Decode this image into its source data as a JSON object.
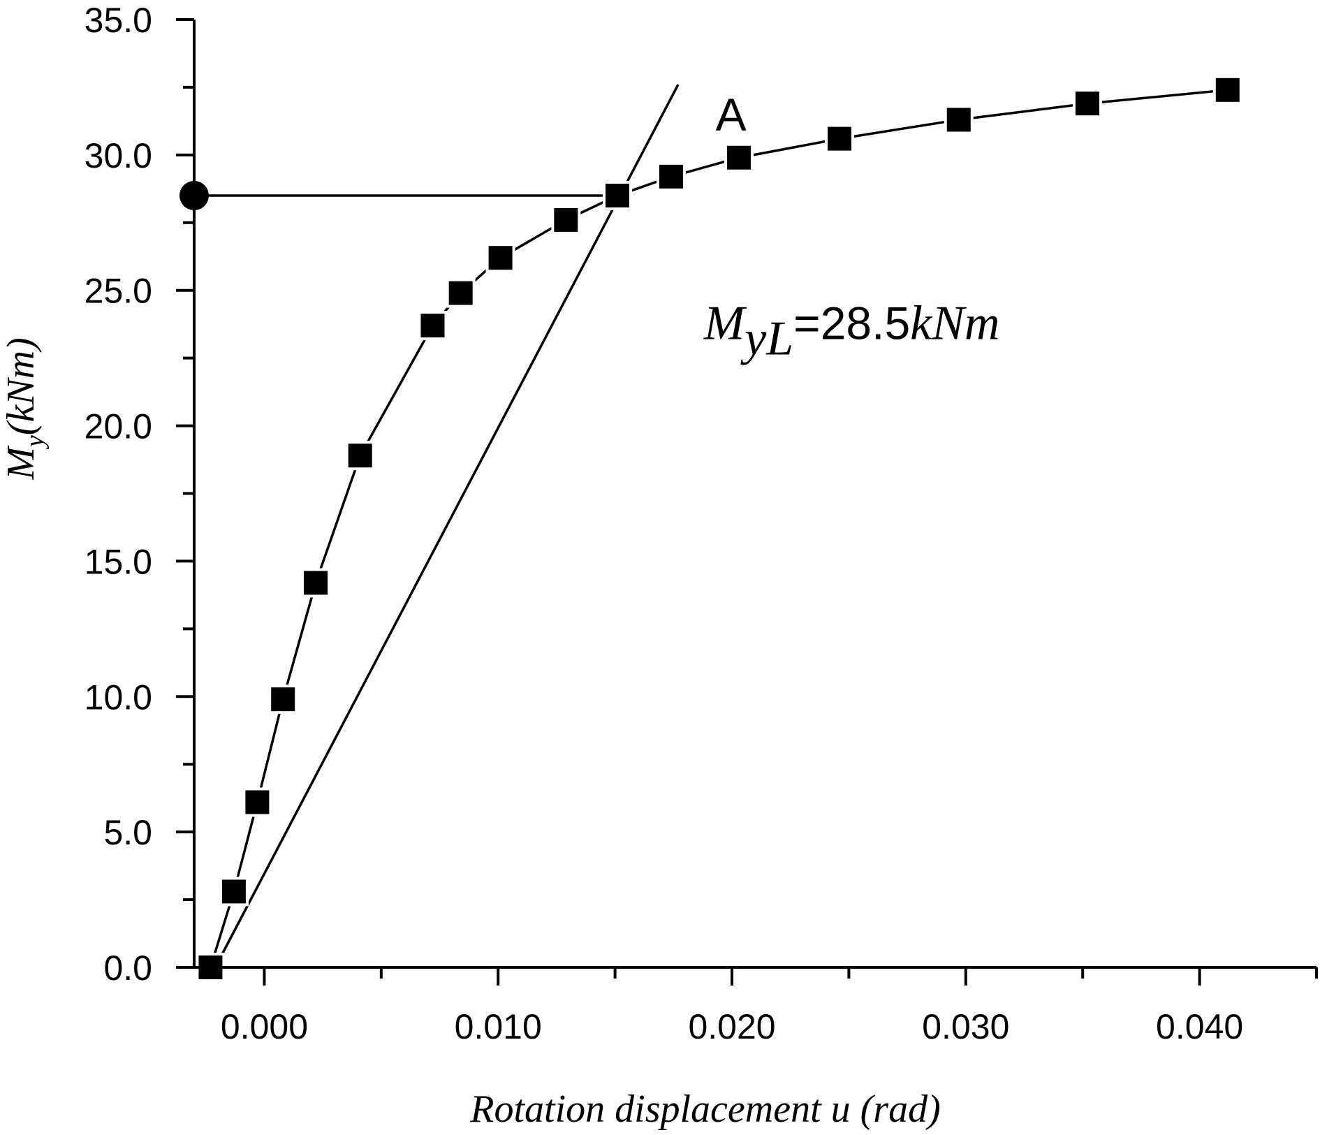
{
  "chart_data": {
    "type": "line",
    "title": "",
    "xlabel": "Rotation displacement u (rad)",
    "ylabel": {
      "symbol": "M",
      "sub": "y",
      "unit": "(kNm)"
    },
    "xlim": [
      -0.003,
      0.045
    ],
    "ylim": [
      0,
      35
    ],
    "x_major_ticks": [
      0.0,
      0.01,
      0.02,
      0.03,
      0.04
    ],
    "x_tick_labels": [
      "0.000",
      "0.010",
      "0.020",
      "0.030",
      "0.040"
    ],
    "x_minor_ticks": [
      0.005,
      0.015,
      0.025,
      0.035,
      0.045
    ],
    "y_major_ticks": [
      0,
      5,
      10,
      15,
      20,
      25,
      30,
      35
    ],
    "y_tick_labels": [
      "0.0",
      "5.0",
      "10.0",
      "15.0",
      "20.0",
      "25.0",
      "30.0",
      "35.0"
    ],
    "y_minor_ticks": [
      2.5,
      7.5,
      12.5,
      17.5,
      22.5,
      27.5,
      32.5
    ],
    "grid": false,
    "series": [
      {
        "marker": "square",
        "x": [
          -0.0023,
          -0.0013,
          -0.0003,
          0.0008,
          0.0022,
          0.0041,
          0.0072,
          0.0084,
          0.0101,
          0.0129,
          0.0151,
          0.0174,
          0.0203,
          0.0246,
          0.0297,
          0.0352,
          0.0412
        ],
        "y": [
          0.0,
          2.8,
          6.1,
          9.9,
          14.2,
          18.9,
          23.7,
          24.9,
          26.2,
          27.6,
          28.5,
          29.2,
          29.9,
          30.6,
          31.3,
          31.9,
          32.4
        ]
      }
    ],
    "reference_line": {
      "x": [
        -0.0021,
        0.0177
      ],
      "y": [
        0.0,
        32.6
      ]
    },
    "yield_line": {
      "x": [
        -0.003,
        0.0152
      ],
      "y": [
        28.5,
        28.5
      ]
    },
    "yield_point": {
      "x": -0.003,
      "y": 28.5
    },
    "annotations": {
      "point_label": {
        "text": "A",
        "x": 0.0193,
        "y": 30.9
      },
      "yield_label": {
        "symbol": "M",
        "sub": "yL",
        "value": "=28.5",
        "unit": "kNm",
        "x": 0.0188,
        "y": 23.2
      }
    }
  }
}
